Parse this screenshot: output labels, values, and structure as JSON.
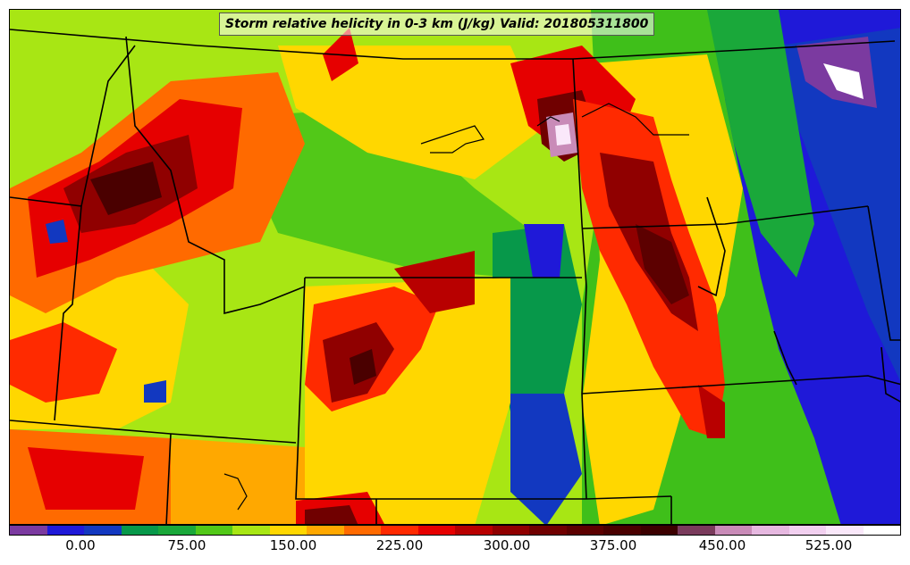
{
  "title": "Storm relative helicity in 0-3 km (J/kg) Valid: 201805311800",
  "colorbar": {
    "colors": [
      "#7b3aa0",
      "#1f19d8",
      "#1238c0",
      "#07984a",
      "#1aa83a",
      "#52c818",
      "#a8e614",
      "#ffd700",
      "#ffa800",
      "#ff6a00",
      "#ff2a00",
      "#e60000",
      "#b80000",
      "#900000",
      "#700000",
      "#5c0000",
      "#4a0000",
      "#3c0000",
      "#7a3b5c",
      "#c98bb8",
      "#e6b8e0",
      "#f2d0f0",
      "#fae8fa",
      "#ffffff"
    ],
    "tick_labels": [
      "0.00",
      "75.00",
      "150.00",
      "225.00",
      "300.00",
      "375.00",
      "450.00",
      "525.00"
    ]
  },
  "map_regions": [
    "montana-wyoming-idaho-high-helicity",
    "colorado-high-helicity",
    "dakotas-nebraska-kansas-band",
    "minnesota-iowa-low-helicity"
  ]
}
